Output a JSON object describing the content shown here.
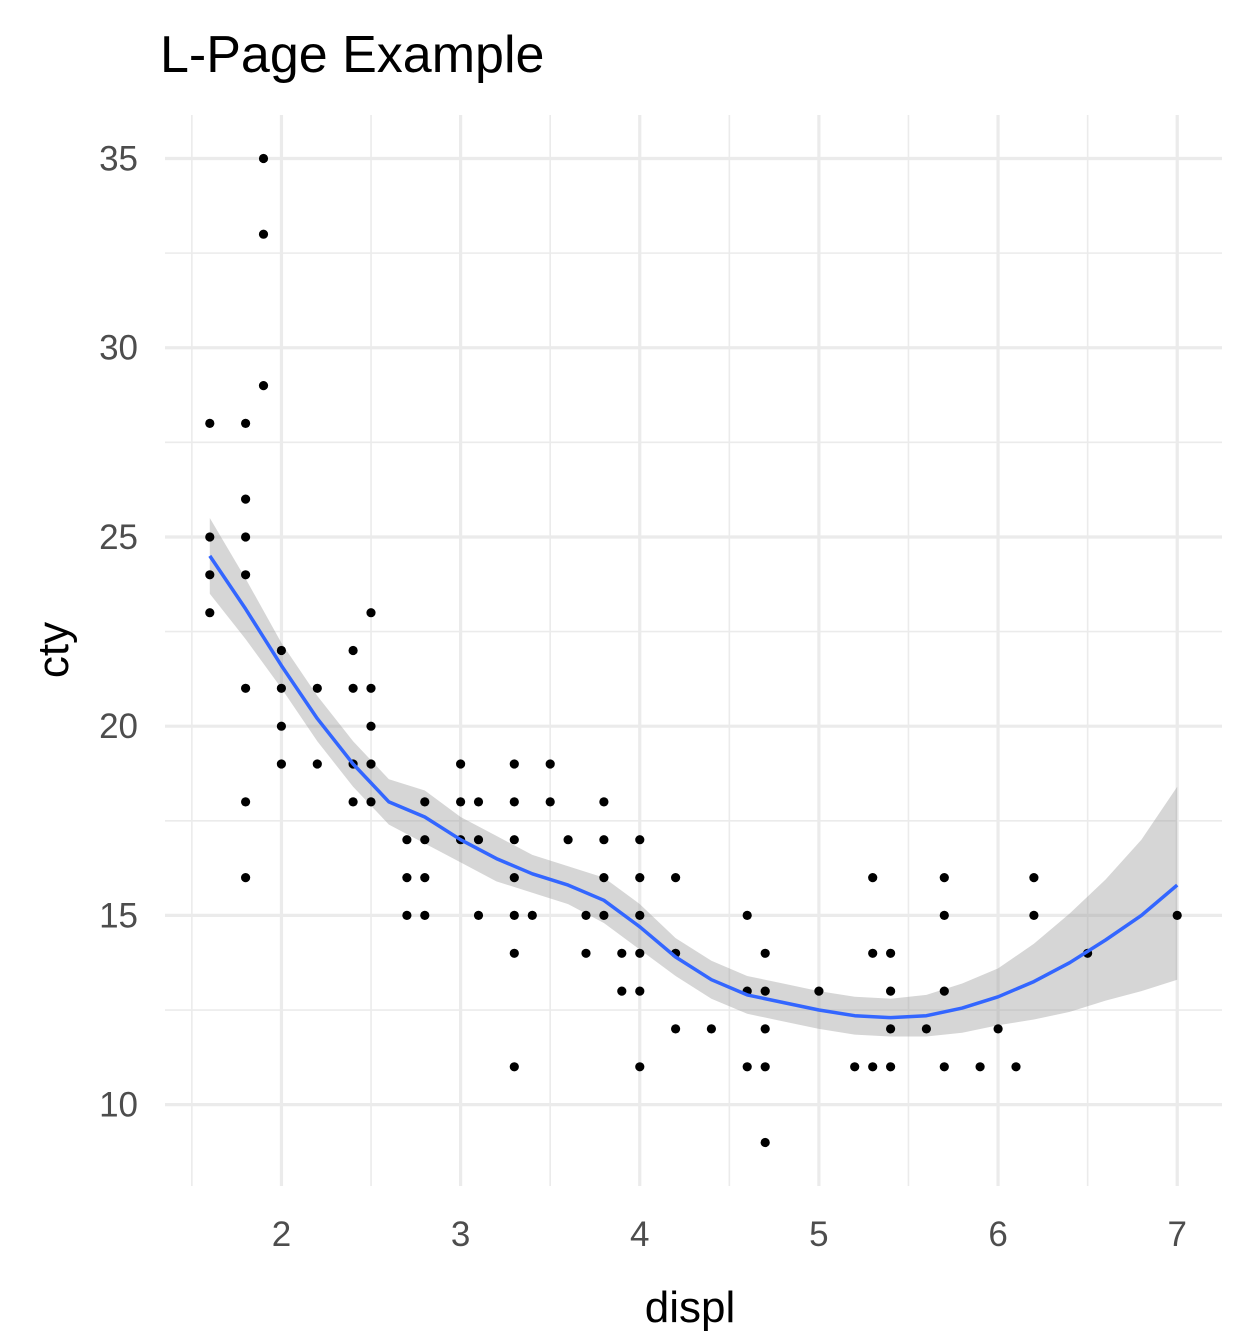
{
  "chart_data": {
    "type": "scatter",
    "title": "L-Page Example",
    "xlabel": "displ",
    "ylabel": "cty",
    "xlim": [
      1.35,
      7.25
    ],
    "ylim": [
      7.85,
      36.15
    ],
    "x_ticks": [
      2,
      3,
      4,
      5,
      6,
      7
    ],
    "y_ticks": [
      10,
      15,
      20,
      25,
      30,
      35
    ],
    "grid": true,
    "legend": "none",
    "colors": {
      "points": "#000000",
      "smooth": "#3366ff",
      "ribbon": "#999999",
      "grid": "#ebebeb"
    },
    "points": [
      [
        1.6,
        28
      ],
      [
        1.6,
        25
      ],
      [
        1.6,
        24
      ],
      [
        1.6,
        23
      ],
      [
        1.8,
        28
      ],
      [
        1.8,
        26
      ],
      [
        1.8,
        25
      ],
      [
        1.8,
        24
      ],
      [
        1.8,
        21
      ],
      [
        1.8,
        18
      ],
      [
        1.8,
        16
      ],
      [
        1.9,
        35
      ],
      [
        1.9,
        33
      ],
      [
        1.9,
        29
      ],
      [
        2.0,
        22
      ],
      [
        2.0,
        21
      ],
      [
        2.0,
        20
      ],
      [
        2.0,
        19
      ],
      [
        2.2,
        21
      ],
      [
        2.2,
        19
      ],
      [
        2.4,
        22
      ],
      [
        2.4,
        21
      ],
      [
        2.4,
        19
      ],
      [
        2.4,
        18
      ],
      [
        2.5,
        23
      ],
      [
        2.5,
        21
      ],
      [
        2.5,
        20
      ],
      [
        2.5,
        19
      ],
      [
        2.5,
        18
      ],
      [
        2.7,
        17
      ],
      [
        2.7,
        16
      ],
      [
        2.7,
        15
      ],
      [
        2.8,
        18
      ],
      [
        2.8,
        17
      ],
      [
        2.8,
        16
      ],
      [
        2.8,
        15
      ],
      [
        3.0,
        19
      ],
      [
        3.0,
        18
      ],
      [
        3.0,
        17
      ],
      [
        3.1,
        18
      ],
      [
        3.1,
        17
      ],
      [
        3.1,
        15
      ],
      [
        3.3,
        19
      ],
      [
        3.3,
        18
      ],
      [
        3.3,
        17
      ],
      [
        3.3,
        16
      ],
      [
        3.3,
        15
      ],
      [
        3.3,
        14
      ],
      [
        3.3,
        11
      ],
      [
        3.4,
        15
      ],
      [
        3.5,
        19
      ],
      [
        3.5,
        18
      ],
      [
        3.6,
        17
      ],
      [
        3.7,
        15
      ],
      [
        3.7,
        14
      ],
      [
        3.8,
        18
      ],
      [
        3.8,
        17
      ],
      [
        3.8,
        16
      ],
      [
        3.8,
        15
      ],
      [
        3.9,
        14
      ],
      [
        3.9,
        13
      ],
      [
        4.0,
        17
      ],
      [
        4.0,
        16
      ],
      [
        4.0,
        15
      ],
      [
        4.0,
        14
      ],
      [
        4.0,
        13
      ],
      [
        4.0,
        11
      ],
      [
        4.2,
        16
      ],
      [
        4.2,
        14
      ],
      [
        4.2,
        12
      ],
      [
        4.4,
        12
      ],
      [
        4.6,
        15
      ],
      [
        4.6,
        13
      ],
      [
        4.6,
        11
      ],
      [
        4.7,
        14
      ],
      [
        4.7,
        13
      ],
      [
        4.7,
        12
      ],
      [
        4.7,
        11
      ],
      [
        4.7,
        9
      ],
      [
        5.0,
        13
      ],
      [
        5.2,
        11
      ],
      [
        5.3,
        16
      ],
      [
        5.3,
        14
      ],
      [
        5.3,
        11
      ],
      [
        5.4,
        14
      ],
      [
        5.4,
        13
      ],
      [
        5.4,
        12
      ],
      [
        5.4,
        11
      ],
      [
        5.6,
        12
      ],
      [
        5.7,
        16
      ],
      [
        5.7,
        15
      ],
      [
        5.7,
        13
      ],
      [
        5.7,
        11
      ],
      [
        5.9,
        11
      ],
      [
        6.0,
        12
      ],
      [
        6.1,
        11
      ],
      [
        6.2,
        16
      ],
      [
        6.2,
        15
      ],
      [
        6.5,
        14
      ],
      [
        7.0,
        15
      ]
    ],
    "smooth": {
      "method": "loess",
      "x": [
        1.6,
        1.8,
        2.0,
        2.2,
        2.4,
        2.6,
        2.8,
        3.0,
        3.2,
        3.4,
        3.6,
        3.8,
        4.0,
        4.2,
        4.4,
        4.6,
        4.8,
        5.0,
        5.2,
        5.4,
        5.6,
        5.8,
        6.0,
        6.2,
        6.4,
        6.6,
        6.8,
        7.0
      ],
      "y": [
        24.5,
        23.1,
        21.6,
        20.2,
        19.0,
        18.0,
        17.6,
        17.0,
        16.5,
        16.1,
        15.8,
        15.4,
        14.7,
        13.9,
        13.3,
        12.9,
        12.7,
        12.5,
        12.35,
        12.3,
        12.35,
        12.55,
        12.85,
        13.25,
        13.75,
        14.35,
        15.0,
        15.8
      ],
      "lower": [
        23.5,
        22.3,
        21.0,
        19.6,
        18.4,
        17.4,
        16.9,
        16.4,
        15.9,
        15.6,
        15.3,
        14.8,
        14.1,
        13.4,
        12.8,
        12.4,
        12.2,
        12.0,
        11.85,
        11.8,
        11.8,
        11.9,
        12.1,
        12.25,
        12.45,
        12.75,
        13.0,
        13.3
      ],
      "upper": [
        25.5,
        23.9,
        22.2,
        20.8,
        19.6,
        18.6,
        18.3,
        17.6,
        17.1,
        16.6,
        16.3,
        16.0,
        15.3,
        14.4,
        13.8,
        13.4,
        13.2,
        13.0,
        12.85,
        12.8,
        12.9,
        13.2,
        13.6,
        14.25,
        15.05,
        15.95,
        17.0,
        18.4
      ]
    }
  }
}
